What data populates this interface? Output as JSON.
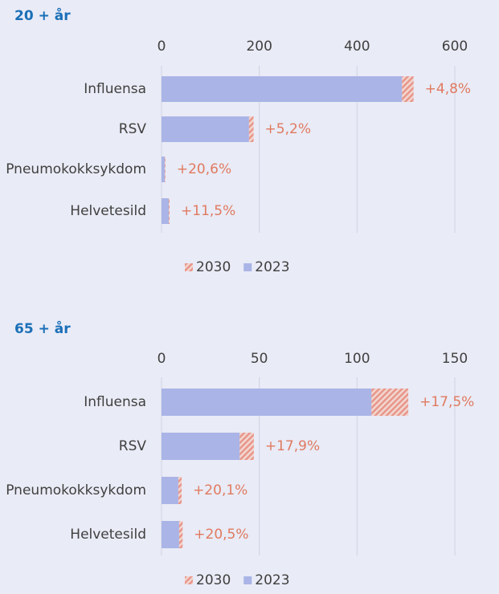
{
  "chart_data": [
    {
      "type": "bar",
      "orientation": "horizontal",
      "stacked": true,
      "title": "20 + år",
      "categories": [
        "Influensa",
        "RSV",
        "Pneumokokksykdom",
        "Helvetesild"
      ],
      "series": [
        {
          "name": "2023",
          "color": "#aab4e6",
          "values": [
            492,
            179,
            6.6,
            14.8
          ]
        },
        {
          "name": "2030",
          "color": "#e8968a",
          "hatch": true,
          "values": [
            23.6,
            9.3,
            1.4,
            1.7
          ]
        }
      ],
      "annotations": [
        "+4,8%",
        "+5,2%",
        "+20,6%",
        "+11,5%"
      ],
      "xlim": [
        0,
        600
      ],
      "xticks": [
        0,
        200,
        400,
        600
      ],
      "grid": true,
      "legend": "bottom"
    },
    {
      "type": "bar",
      "orientation": "horizontal",
      "stacked": true,
      "title": "65 + år",
      "categories": [
        "Influensa",
        "RSV",
        "Pneumokokksykdom",
        "Helvetesild"
      ],
      "series": [
        {
          "name": "2023",
          "color": "#aab4e6",
          "values": [
            107.4,
            40,
            8.6,
            9
          ]
        },
        {
          "name": "2030",
          "color": "#e8968a",
          "hatch": true,
          "values": [
            18.8,
            7.2,
            1.7,
            1.8
          ]
        }
      ],
      "annotations": [
        "+17,5%",
        "+17,9%",
        "+20,1%",
        "+20,5%"
      ],
      "xlim": [
        0,
        150
      ],
      "xticks": [
        0,
        50,
        100,
        150
      ],
      "grid": true,
      "legend": "bottom"
    }
  ]
}
